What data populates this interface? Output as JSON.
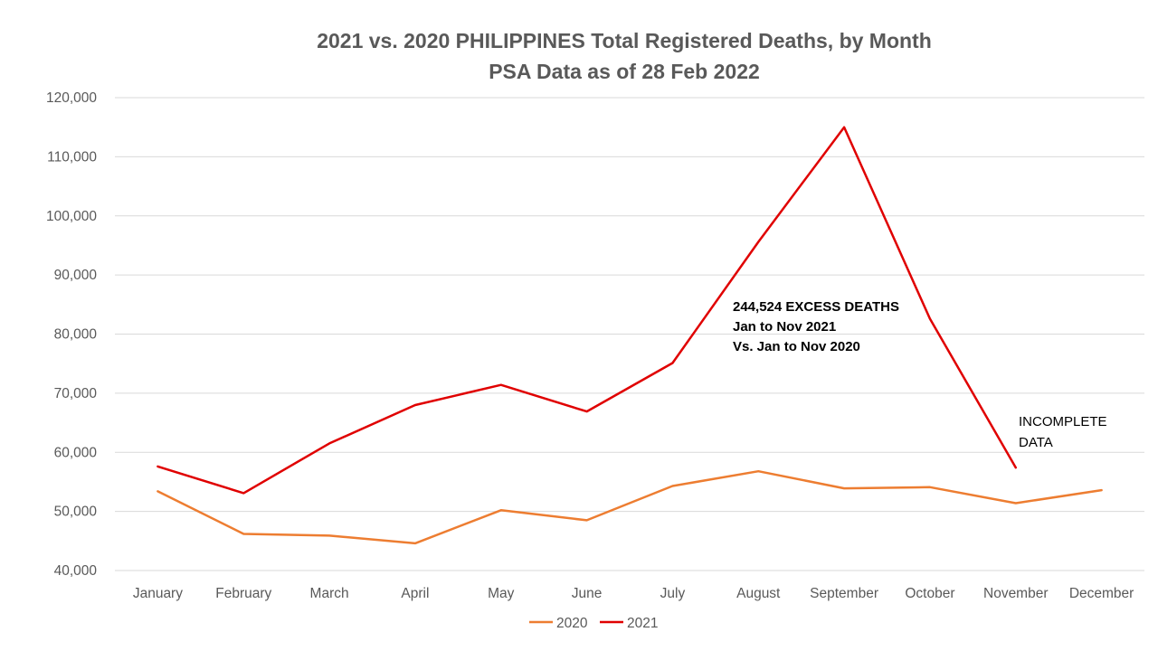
{
  "chart_data": {
    "type": "line",
    "title": "2021 vs. 2020 PHILIPPINES Total Registered Deaths, by Month",
    "subtitle": "PSA Data as of 28 Feb 2022",
    "categories": [
      "January",
      "February",
      "March",
      "April",
      "May",
      "June",
      "July",
      "August",
      "September",
      "October",
      "November",
      "December"
    ],
    "ylim": [
      40000,
      120000
    ],
    "yticks": [
      40000,
      50000,
      60000,
      70000,
      80000,
      90000,
      100000,
      110000,
      120000
    ],
    "ytick_labels": [
      "40,000",
      "50,000",
      "60,000",
      "70,000",
      "80,000",
      "90,000",
      "100,000",
      "110,000",
      "120,000"
    ],
    "grid": true,
    "legend_position": "bottom",
    "series": [
      {
        "name": "2020",
        "color": "#ED7D31",
        "values": [
          53400,
          46200,
          45900,
          44600,
          50200,
          48500,
          54300,
          56800,
          53900,
          54100,
          51400,
          53600
        ]
      },
      {
        "name": "2021",
        "color": "#E00000",
        "values": [
          57600,
          53100,
          61500,
          68000,
          71400,
          66900,
          75100,
          95600,
          115000,
          82600,
          57400,
          null
        ]
      }
    ],
    "annotations": [
      {
        "lines": [
          "244,524 EXCESS DEATHS",
          "Jan to Nov 2021",
          "Vs. Jan to Nov 2020"
        ],
        "bold": true
      },
      {
        "lines": [
          "INCOMPLETE",
          "DATA"
        ],
        "bold": false
      }
    ]
  }
}
